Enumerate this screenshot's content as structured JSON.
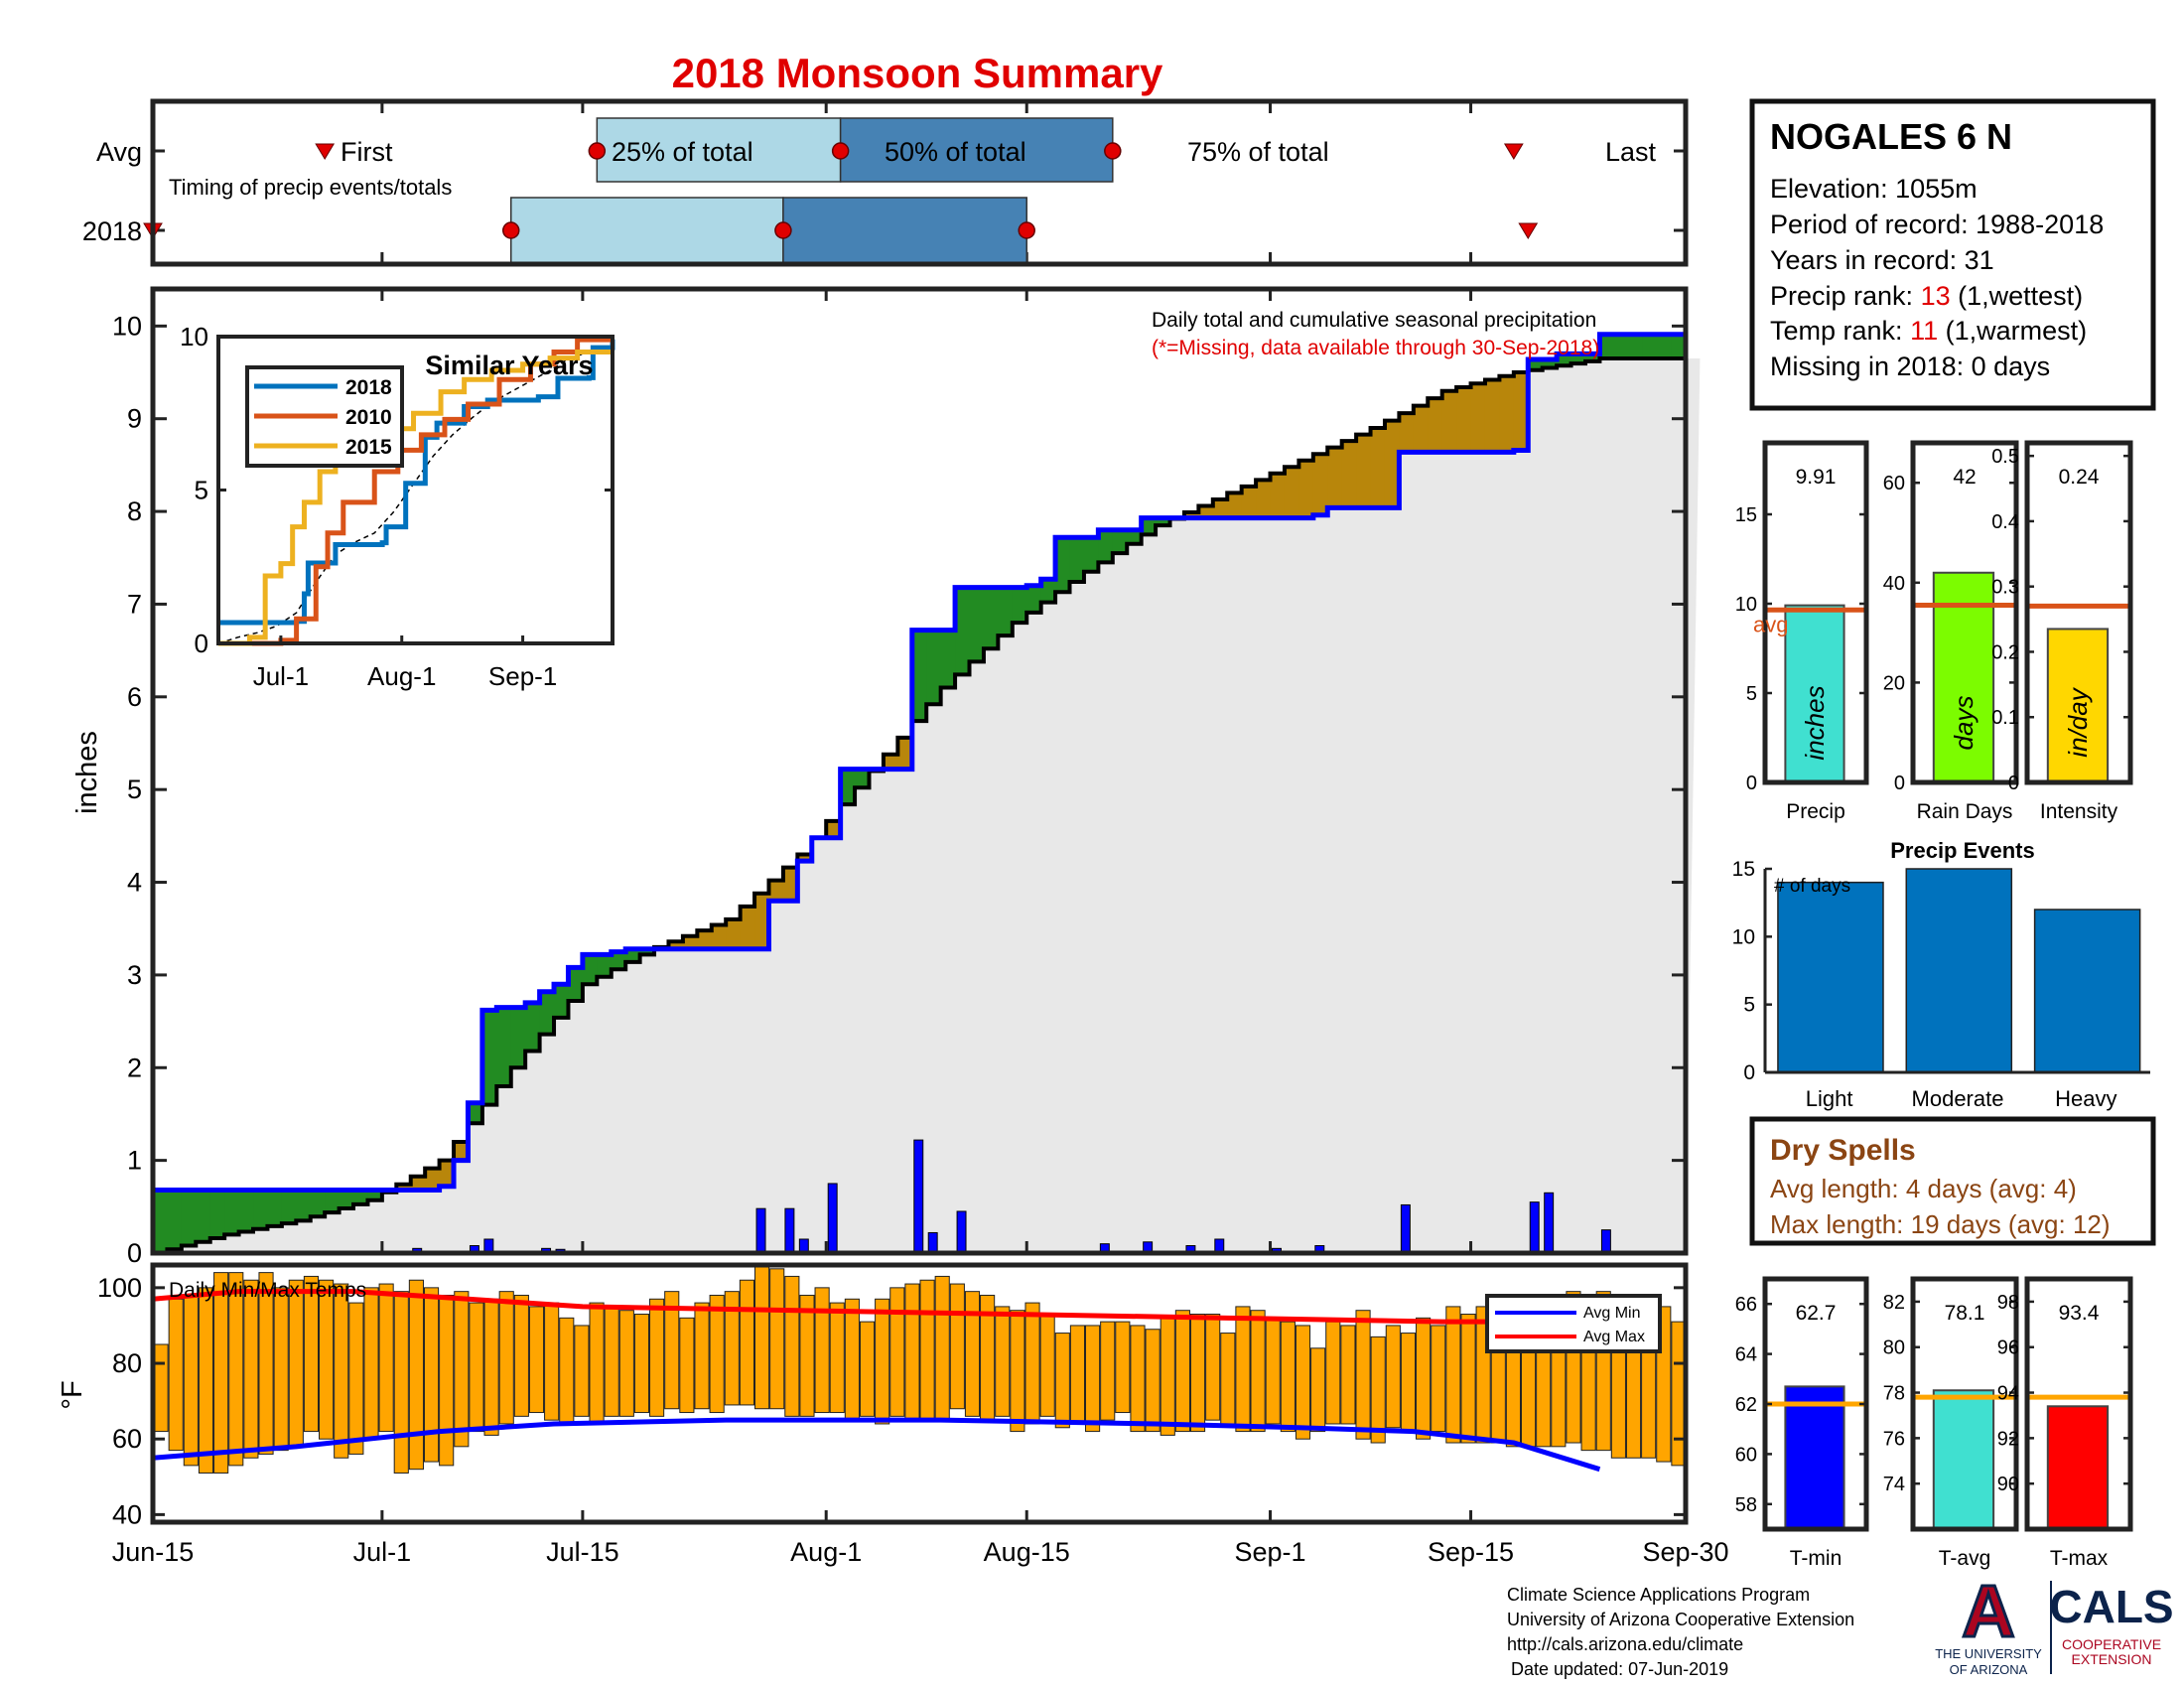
{
  "chart_data": {
    "type": "dashboard",
    "title": "2018 Monsoon Summary",
    "x_ticks": [
      "Jun-15",
      "Jul-1",
      "Jul-15",
      "Aug-1",
      "Aug-15",
      "Sep-1",
      "Sep-15",
      "Sep-30"
    ],
    "timing": {
      "avg_label": "Avg",
      "year_label": "2018",
      "first_label": "First",
      "last_label": "Last",
      "p25_label": "25% of total",
      "p50_label": "50% of total",
      "p75_label": "75% of total",
      "subtitle": "Timing of precip events/totals",
      "avg_days": {
        "first": 12,
        "p25": 31,
        "p50": 48,
        "p75": 67,
        "last": 95
      },
      "year_days": {
        "first": 0,
        "p25": 25,
        "p50": 44,
        "p75": 61,
        "last": 96
      }
    },
    "precip": {
      "ylabel": "inches",
      "ylim": [
        0,
        10.4
      ],
      "yticks": [
        0,
        1,
        2,
        3,
        4,
        5,
        6,
        7,
        8,
        9,
        10
      ],
      "note1": "Daily total and cumulative seasonal precipitation",
      "note2": "(*=Missing, data available through 30-Sep-2018)",
      "colors": {
        "area": "#e8e8e8",
        "above": "#228b22",
        "below": "#b8860b",
        "year_line": "#0000ff",
        "avg_line": "#000000",
        "bars": "#0000ff"
      },
      "cum_2018": [
        [
          0,
          0.68
        ],
        [
          14,
          0.68
        ],
        [
          15,
          0.68
        ],
        [
          20,
          0.72
        ],
        [
          21,
          1.0
        ],
        [
          22,
          1.62
        ],
        [
          23,
          2.62
        ],
        [
          24,
          2.65
        ],
        [
          26,
          2.7
        ],
        [
          27,
          2.82
        ],
        [
          28,
          2.9
        ],
        [
          29,
          3.08
        ],
        [
          30,
          3.22
        ],
        [
          31,
          3.22
        ],
        [
          32,
          3.25
        ],
        [
          33,
          3.28
        ],
        [
          42,
          3.28
        ],
        [
          43,
          3.8
        ],
        [
          44,
          3.8
        ],
        [
          45,
          4.23
        ],
        [
          46,
          4.48
        ],
        [
          47,
          4.48
        ],
        [
          48,
          5.22
        ],
        [
          51,
          5.22
        ],
        [
          52,
          5.22
        ],
        [
          53,
          6.72
        ],
        [
          54,
          6.72
        ],
        [
          56,
          7.18
        ],
        [
          58,
          7.18
        ],
        [
          61,
          7.2
        ],
        [
          62,
          7.27
        ],
        [
          63,
          7.72
        ],
        [
          64,
          7.72
        ],
        [
          66,
          7.8
        ],
        [
          68,
          7.8
        ],
        [
          69,
          7.93
        ],
        [
          72,
          7.93
        ],
        [
          74,
          7.93
        ],
        [
          81,
          7.96
        ],
        [
          82,
          8.04
        ],
        [
          84,
          8.04
        ],
        [
          87,
          8.64
        ],
        [
          94,
          8.64
        ],
        [
          95,
          8.66
        ],
        [
          96,
          9.64
        ],
        [
          97,
          9.64
        ],
        [
          98,
          9.7
        ],
        [
          100,
          9.7
        ],
        [
          101,
          9.91
        ]
      ],
      "cum_avg": [
        [
          0,
          0.0
        ],
        [
          5,
          0.2
        ],
        [
          10,
          0.35
        ],
        [
          15,
          0.57
        ],
        [
          20,
          1.0
        ],
        [
          25,
          2.0
        ],
        [
          30,
          2.9
        ],
        [
          35,
          3.3
        ],
        [
          40,
          3.6
        ],
        [
          45,
          4.3
        ],
        [
          50,
          5.2
        ],
        [
          55,
          6.1
        ],
        [
          60,
          6.8
        ],
        [
          65,
          7.35
        ],
        [
          70,
          7.85
        ],
        [
          75,
          8.2
        ],
        [
          80,
          8.55
        ],
        [
          85,
          8.9
        ],
        [
          90,
          9.3
        ],
        [
          95,
          9.5
        ],
        [
          100,
          9.62
        ],
        [
          101,
          9.65
        ]
      ],
      "daily_2018": [
        [
          14,
          0.01
        ],
        [
          18,
          0.05
        ],
        [
          20,
          0.02
        ],
        [
          22,
          0.08
        ],
        [
          23,
          0.15
        ],
        [
          24,
          0.02
        ],
        [
          25,
          0.01
        ],
        [
          26,
          0.02
        ],
        [
          27,
          0.05
        ],
        [
          28,
          0.04
        ],
        [
          29,
          0.02
        ],
        [
          30,
          0.02
        ],
        [
          31,
          0.02
        ],
        [
          32,
          0.01
        ],
        [
          35,
          0.02
        ],
        [
          40,
          0.02
        ],
        [
          41,
          0.01
        ],
        [
          42,
          0.48
        ],
        [
          43,
          0.01
        ],
        [
          44,
          0.48
        ],
        [
          45,
          0.15
        ],
        [
          47,
          0.75
        ],
        [
          50,
          0.01
        ],
        [
          53,
          1.22
        ],
        [
          54,
          0.22
        ],
        [
          56,
          0.45
        ],
        [
          60,
          0.01
        ],
        [
          63,
          0.02
        ],
        [
          66,
          0.1
        ],
        [
          69,
          0.12
        ],
        [
          72,
          0.08
        ],
        [
          74,
          0.15
        ],
        [
          78,
          0.05
        ],
        [
          81,
          0.08
        ],
        [
          87,
          0.52
        ],
        [
          88,
          0.01
        ],
        [
          96,
          0.55
        ],
        [
          97,
          0.65
        ],
        [
          100,
          0.02
        ],
        [
          101,
          0.25
        ]
      ]
    },
    "inset": {
      "title": "Similar Years",
      "x_ticks": [
        "Jul-1",
        "Aug-1",
        "Sep-1"
      ],
      "y_ticks": [
        0,
        5,
        10
      ],
      "legend": [
        "2018",
        "2010",
        "2015"
      ],
      "colors": [
        "#0072bd",
        "#d95319",
        "#edb120"
      ],
      "series": [
        {
          "name": "2018",
          "points": [
            [
              0,
              0.68
            ],
            [
              14,
              0.68
            ],
            [
              20,
              0.72
            ],
            [
              22,
              1.62
            ],
            [
              23,
              2.62
            ],
            [
              30,
              3.22
            ],
            [
              42,
              3.28
            ],
            [
              43,
              3.8
            ],
            [
              48,
              5.22
            ],
            [
              52,
              5.22
            ],
            [
              53,
              6.72
            ],
            [
              56,
              7.18
            ],
            [
              63,
              7.72
            ],
            [
              69,
              7.93
            ],
            [
              82,
              8.04
            ],
            [
              87,
              8.64
            ],
            [
              95,
              8.66
            ],
            [
              96,
              9.64
            ],
            [
              101,
              9.91
            ]
          ]
        },
        {
          "name": "2010",
          "points": [
            [
              0,
              0
            ],
            [
              10,
              0
            ],
            [
              16,
              0.1
            ],
            [
              20,
              0.8
            ],
            [
              25,
              2.5
            ],
            [
              28,
              3.6
            ],
            [
              32,
              4.6
            ],
            [
              40,
              5.6
            ],
            [
              46,
              6.3
            ],
            [
              52,
              6.8
            ],
            [
              58,
              7.3
            ],
            [
              64,
              7.8
            ],
            [
              72,
              8.6
            ],
            [
              80,
              9.1
            ],
            [
              86,
              9.5
            ],
            [
              92,
              9.9
            ],
            [
              101,
              9.9
            ]
          ]
        },
        {
          "name": "2015",
          "points": [
            [
              0,
              0
            ],
            [
              8,
              0.2
            ],
            [
              12,
              2.2
            ],
            [
              16,
              2.6
            ],
            [
              19,
              3.8
            ],
            [
              22,
              4.6
            ],
            [
              26,
              5.6
            ],
            [
              30,
              6.2
            ],
            [
              38,
              6.6
            ],
            [
              45,
              7.0
            ],
            [
              50,
              7.5
            ],
            [
              57,
              8.2
            ],
            [
              63,
              8.6
            ],
            [
              70,
              8.9
            ],
            [
              78,
              9.1
            ],
            [
              85,
              9.3
            ],
            [
              92,
              9.5
            ],
            [
              101,
              9.5
            ]
          ]
        }
      ]
    },
    "station": {
      "name": "NOGALES 6 N",
      "elevation": "Elevation: 1055m",
      "period": "Period of record: 1988-2018",
      "years": "Years in record: 31",
      "precip_rank_label": "Precip rank: ",
      "precip_rank_value": "13",
      "precip_rank_note": " (1,wettest)",
      "temp_rank_label": "Temp rank: ",
      "temp_rank_value": "11",
      "temp_rank_note": " (1,warmest)",
      "missing": "Missing in 2018: 0 days"
    },
    "stats": {
      "precip": {
        "label": "Precip",
        "value_label": "9.91",
        "value": 9.91,
        "avg": 9.65,
        "ylim": [
          0,
          19
        ],
        "yticks": [
          0,
          5,
          10,
          15
        ],
        "unit": "inches",
        "avg_label": "avg",
        "color": "#40e0d0"
      },
      "raindays": {
        "label": "Rain Days",
        "value_label": "42",
        "value": 42,
        "avg": 35.5,
        "ylim": [
          0,
          68
        ],
        "yticks": [
          0,
          20,
          40,
          60
        ],
        "unit": "days",
        "color": "#7cfc00"
      },
      "intensity": {
        "label": "Intensity",
        "value_label": "0.24",
        "value": 0.235,
        "avg": 0.27,
        "ylim": [
          0,
          0.52
        ],
        "yticks": [
          0,
          0.1,
          0.2,
          0.3,
          0.4,
          0.5
        ],
        "unit": "in/day",
        "color": "#ffd700"
      }
    },
    "events": {
      "title": "Precip Events",
      "ylabel_note": "# of days",
      "categories": [
        "Light",
        "Moderate",
        "Heavy"
      ],
      "values": [
        14,
        15,
        12
      ],
      "ylim": [
        0,
        15
      ],
      "yticks": [
        0,
        5,
        10,
        15
      ],
      "color": "#0072bd"
    },
    "dry_spells": {
      "title": "Dry Spells",
      "avg_length": "Avg length: 4 days (avg: 4)",
      "max_length": "Max length: 19 days (avg: 12)"
    },
    "temps": {
      "title": "Daily Min/Max Temps",
      "ylabel": "°F",
      "ylim": [
        38,
        106
      ],
      "yticks": [
        40,
        60,
        80,
        100
      ],
      "legend": [
        "Avg Min",
        "Avg Max"
      ],
      "bar_color": "#ffa500",
      "tmax": [
        85,
        97,
        98,
        100,
        104,
        104,
        102,
        104,
        100,
        102,
        103,
        102,
        101,
        96,
        100,
        101,
        99,
        102,
        100,
        98,
        99,
        96,
        97,
        99,
        98,
        95,
        96,
        92,
        90,
        96,
        95,
        94,
        93,
        97,
        99,
        92,
        96,
        98,
        99,
        102,
        106,
        105,
        103,
        98,
        100,
        96,
        97,
        91,
        97,
        100,
        101,
        102,
        103,
        101,
        99,
        98,
        95,
        94,
        96,
        93,
        88,
        90,
        90,
        91,
        91,
        90,
        89,
        92,
        94,
        93,
        93,
        88,
        95,
        94,
        92,
        91,
        90,
        84,
        91,
        90,
        94,
        87,
        90,
        88,
        92,
        90,
        95,
        93,
        95,
        96,
        96,
        97,
        98,
        98,
        99,
        97,
        99,
        96,
        85,
        93,
        95,
        91
      ],
      "tmin": [
        62,
        57,
        53,
        51,
        51,
        53,
        55,
        56,
        57,
        58,
        62,
        60,
        55,
        56,
        60,
        62,
        51,
        52,
        54,
        53,
        58,
        62,
        61,
        64,
        66,
        67,
        65,
        64,
        66,
        64,
        66,
        66,
        67,
        66,
        68,
        67,
        68,
        67,
        69,
        69,
        68,
        68,
        66,
        66,
        67,
        67,
        65,
        66,
        64,
        66,
        65,
        65,
        65,
        68,
        66,
        65,
        66,
        62,
        64,
        66,
        63,
        64,
        62,
        65,
        67,
        62,
        62,
        61,
        62,
        62,
        65,
        64,
        62,
        62,
        64,
        62,
        60,
        62,
        64,
        64,
        60,
        59,
        63,
        62,
        60,
        62,
        59,
        59,
        59,
        59,
        58,
        58,
        58,
        58,
        59,
        57,
        57,
        55,
        55,
        55,
        54,
        53
      ],
      "avg_min": [
        [
          0,
          55
        ],
        [
          10,
          58
        ],
        [
          20,
          62
        ],
        [
          28,
          64
        ],
        [
          40,
          65
        ],
        [
          55,
          65
        ],
        [
          70,
          64
        ],
        [
          80,
          63
        ],
        [
          88,
          62
        ],
        [
          95,
          59
        ],
        [
          101,
          52
        ]
      ],
      "avg_max": [
        [
          0,
          97
        ],
        [
          6,
          99
        ],
        [
          14,
          99
        ],
        [
          22,
          97
        ],
        [
          30,
          95
        ],
        [
          45,
          94
        ],
        [
          60,
          93
        ],
        [
          75,
          92
        ],
        [
          90,
          91
        ],
        [
          98,
          91
        ],
        [
          101,
          90
        ]
      ]
    },
    "temp_stats": {
      "tmin": {
        "label": "T-min",
        "value_label": "62.7",
        "value": 62.7,
        "avg": 62.0,
        "ylim": [
          57,
          67
        ],
        "yticks": [
          58,
          60,
          62,
          64,
          66
        ],
        "color": "#0000ff"
      },
      "tavg": {
        "label": "T-avg",
        "value_label": "78.1",
        "value": 78.1,
        "avg": 77.8,
        "ylim": [
          72,
          83
        ],
        "yticks": [
          74,
          76,
          78,
          80,
          82
        ],
        "color": "#40e0d0"
      },
      "tmax": {
        "label": "T-max",
        "value_label": "93.4",
        "value": 93.4,
        "avg": 93.8,
        "ylim": [
          88,
          99
        ],
        "yticks": [
          90,
          92,
          94,
          96,
          98
        ],
        "color": "#ff0000"
      }
    },
    "footer": {
      "line1": "Climate Science Applications Program",
      "line2": "University of Arizona Cooperative Extension",
      "line3": "http://cals.arizona.edu/climate",
      "line4": "Date updated: 07-Jun-2019"
    },
    "logos": {
      "ua_letter": "A",
      "ua_line1": "THE UNIVERSITY",
      "ua_line2": "OF ARIZONA",
      "cals": "CALS",
      "cals_line1": "COOPERATIVE",
      "cals_line2": "EXTENSION"
    }
  }
}
